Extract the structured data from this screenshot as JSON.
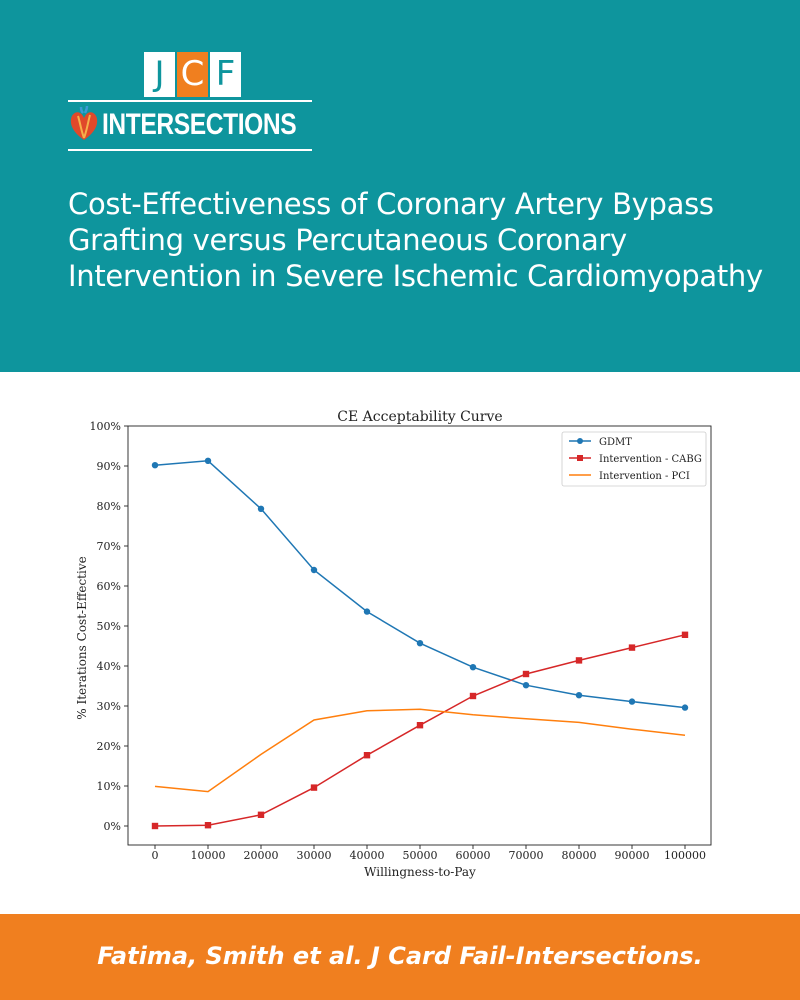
{
  "header": {
    "logo": {
      "letters": [
        "J",
        "C",
        "F"
      ],
      "wordmark": "INTERSECTIONS"
    },
    "title": "Cost-Effectiveness of Coronary Artery Bypass Grafting versus Percutaneous Coronary Intervention in Severe Ischemic Cardiomyopathy"
  },
  "footer": {
    "citation": "Fatima, Smith et al. J Card Fail-Intersections."
  },
  "colors": {
    "teal": "#0e959d",
    "orange": "#f07f1f",
    "gdmt": "#1f77b4",
    "cabg": "#d62728",
    "pci": "#ff7f0e"
  },
  "chart_data": {
    "type": "line",
    "title": "CE Acceptability Curve",
    "xlabel": "Willingness-to-Pay",
    "ylabel": "% Iterations Cost-Effective",
    "x": [
      0,
      10000,
      20000,
      30000,
      40000,
      50000,
      60000,
      70000,
      80000,
      90000,
      100000
    ],
    "xticks": [
      "0",
      "10000",
      "20000",
      "30000",
      "40000",
      "50000",
      "60000",
      "70000",
      "80000",
      "90000",
      "100000"
    ],
    "yticks": [
      "0%",
      "10%",
      "20%",
      "30%",
      "40%",
      "50%",
      "60%",
      "70%",
      "80%",
      "90%",
      "100%"
    ],
    "ylim": [
      0,
      100
    ],
    "legend_position": "top-right",
    "grid": false,
    "series": [
      {
        "name": "GDMT",
        "color": "#1f77b4",
        "marker": "circle",
        "values": [
          90.2,
          91.3,
          79.3,
          64.0,
          53.6,
          45.7,
          39.7,
          35.2,
          32.7,
          31.1,
          29.6
        ]
      },
      {
        "name": "Intervention - CABG",
        "color": "#d62728",
        "marker": "square",
        "values": [
          0.0,
          0.2,
          2.8,
          9.6,
          17.7,
          25.2,
          32.5,
          38.0,
          41.4,
          44.6,
          47.8
        ]
      },
      {
        "name": "Intervention - PCI",
        "color": "#ff7f0e",
        "marker": "none",
        "values": [
          9.9,
          8.6,
          17.9,
          26.5,
          28.8,
          29.2,
          27.8,
          26.8,
          25.9,
          24.2,
          22.7
        ]
      }
    ]
  }
}
